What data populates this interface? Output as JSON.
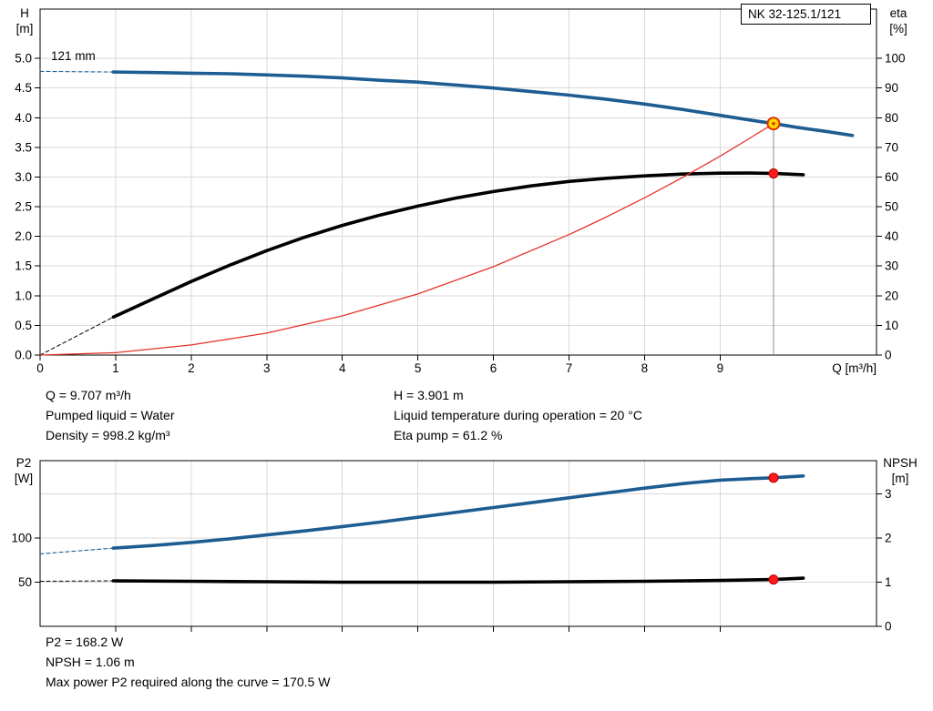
{
  "title_box": "NK 32-125.1/121",
  "impeller": "121 mm",
  "axes": {
    "h": "H",
    "h_unit": "[m]",
    "eta": "eta",
    "eta_unit": "[%]",
    "q": "Q [m³/h]",
    "p2": "P2",
    "p2_unit": "[W]",
    "npsh": "NPSH",
    "npsh_unit": "[m]"
  },
  "info_top": {
    "left": [
      "Q = 9.707 m³/h",
      "Pumped liquid = Water",
      "Density = 998.2 kg/m³"
    ],
    "right": [
      "H = 3.901 m",
      "Liquid temperature during operation = 20 °C",
      "Eta pump = 61.2 %"
    ]
  },
  "info_bottom": [
    "P2 = 168.2 W",
    "NPSH = 1.06 m",
    "Max power P2 required along the curve = 170.5 W"
  ],
  "colors": {
    "curve_blue": "#1d5d92",
    "curve_black": "#000000",
    "curve_red": "#e63329",
    "dot_red": "#ff1a1a",
    "dot_red_edge": "#b00000",
    "duty_yellow": "#ffd800",
    "duty_ring": "#e03000",
    "grid": "#d9d9d9",
    "axis": "#000000",
    "duty_line": "#8c8c8c"
  },
  "chart_data": [
    {
      "name": "qh-eta-chart",
      "type": "line",
      "x_axis": {
        "label": "Q [m³/h]",
        "min": 0,
        "max": 11.07,
        "ticks": [
          {
            "v": 0,
            "label": "0"
          },
          {
            "v": 1,
            "label": "1"
          },
          {
            "v": 2,
            "label": "2"
          },
          {
            "v": 3,
            "label": "3"
          },
          {
            "v": 4,
            "label": "4"
          },
          {
            "v": 5,
            "label": "5"
          },
          {
            "v": 6,
            "label": "6"
          },
          {
            "v": 7,
            "label": "7"
          },
          {
            "v": 8,
            "label": "8"
          },
          {
            "v": 9,
            "label": "9"
          }
        ]
      },
      "left_axis": {
        "label": "H [m]",
        "min": 0,
        "max": 5.83,
        "ticks": [
          {
            "v": 0,
            "label": "0.0"
          },
          {
            "v": 0.5,
            "label": "0.5"
          },
          {
            "v": 1,
            "label": "1.0"
          },
          {
            "v": 1.5,
            "label": "1.5"
          },
          {
            "v": 2,
            "label": "2.0"
          },
          {
            "v": 2.5,
            "label": "2.5"
          },
          {
            "v": 3,
            "label": "3.0"
          },
          {
            "v": 3.5,
            "label": "3.5"
          },
          {
            "v": 4,
            "label": "4.0"
          },
          {
            "v": 4.5,
            "label": "4.5"
          },
          {
            "v": 5,
            "label": "5.0"
          }
        ]
      },
      "right_axis": {
        "label": "eta [%]",
        "min": 0,
        "max": 116.6,
        "ticks": [
          {
            "v": 0,
            "label": "0"
          },
          {
            "v": 10,
            "label": "10"
          },
          {
            "v": 20,
            "label": "20"
          },
          {
            "v": 30,
            "label": "30"
          },
          {
            "v": 40,
            "label": "40"
          },
          {
            "v": 50,
            "label": "50"
          },
          {
            "v": 60,
            "label": "60"
          },
          {
            "v": 70,
            "label": "70"
          },
          {
            "v": 80,
            "label": "80"
          },
          {
            "v": 90,
            "label": "90"
          },
          {
            "v": 100,
            "label": "100"
          }
        ]
      },
      "series": [
        {
          "name": "head-curve-extension",
          "axis": "left",
          "color": "curve_blue",
          "width": 1.1,
          "dash": "4 3",
          "points": [
            [
              0,
              4.78
            ],
            [
              0.97,
              4.77
            ]
          ]
        },
        {
          "name": "head-curve",
          "axis": "left",
          "color": "curve_blue",
          "width": 3.6,
          "points": [
            [
              0.97,
              4.77
            ],
            [
              1.5,
              4.76
            ],
            [
              2,
              4.75
            ],
            [
              2.5,
              4.74
            ],
            [
              3,
              4.72
            ],
            [
              3.5,
              4.7
            ],
            [
              4,
              4.67
            ],
            [
              4.5,
              4.63
            ],
            [
              5,
              4.6
            ],
            [
              5.5,
              4.55
            ],
            [
              6,
              4.5
            ],
            [
              6.5,
              4.44
            ],
            [
              7,
              4.38
            ],
            [
              7.5,
              4.31
            ],
            [
              8,
              4.23
            ],
            [
              8.5,
              4.14
            ],
            [
              9,
              4.04
            ],
            [
              9.5,
              3.94
            ],
            [
              9.707,
              3.901
            ],
            [
              10,
              3.84
            ],
            [
              10.4,
              3.77
            ],
            [
              10.75,
              3.7
            ]
          ]
        },
        {
          "name": "eta-curve-extension",
          "axis": "right",
          "color": "curve_black",
          "width": 1,
          "dash": "4 3",
          "points": [
            [
              0,
              0
            ],
            [
              0.97,
              12.8
            ]
          ]
        },
        {
          "name": "eta-curve",
          "axis": "right",
          "color": "curve_black",
          "width": 3.6,
          "points": [
            [
              0.97,
              12.8
            ],
            [
              1.5,
              19
            ],
            [
              2,
              24.8
            ],
            [
              2.5,
              30.2
            ],
            [
              3,
              35.2
            ],
            [
              3.5,
              39.7
            ],
            [
              4,
              43.7
            ],
            [
              4.5,
              47.2
            ],
            [
              5,
              50.2
            ],
            [
              5.5,
              52.9
            ],
            [
              6,
              55.1
            ],
            [
              6.5,
              57
            ],
            [
              7,
              58.5
            ],
            [
              7.5,
              59.6
            ],
            [
              8,
              60.4
            ],
            [
              8.5,
              61
            ],
            [
              9,
              61.3
            ],
            [
              9.4,
              61.35
            ],
            [
              9.707,
              61.2
            ],
            [
              10.1,
              60.8
            ]
          ]
        },
        {
          "name": "system-curve",
          "axis": "left",
          "color": "curve_red",
          "width": 1.3,
          "points": [
            [
              0,
              0
            ],
            [
              1,
              0.04
            ],
            [
              2,
              0.17
            ],
            [
              3,
              0.37
            ],
            [
              4,
              0.66
            ],
            [
              5,
              1.03
            ],
            [
              6,
              1.49
            ],
            [
              7,
              2.03
            ],
            [
              7.5,
              2.33
            ],
            [
              8,
              2.65
            ],
            [
              8.5,
              2.99
            ],
            [
              9,
              3.35
            ],
            [
              9.35,
              3.62
            ],
            [
              9.707,
              3.901
            ]
          ]
        }
      ],
      "vlines": [
        {
          "q": 9.707,
          "axis": "left",
          "v1": 3.901,
          "v2": 0,
          "color": "duty_line"
        }
      ],
      "markers": [
        {
          "name": "eta-point-marker",
          "q": 9.707,
          "v": 61.2,
          "axis": "right",
          "r": 5,
          "fill": "dot_red",
          "stroke": "dot_red_edge",
          "sw": 1
        },
        {
          "name": "duty-point-marker",
          "q": 9.707,
          "v": 3.901,
          "axis": "left",
          "r": 6.5,
          "fill": "duty_yellow",
          "stroke": "duty_ring",
          "sw": 2
        },
        {
          "name": "duty-point-center",
          "q": 9.707,
          "v": 3.901,
          "axis": "left",
          "r": 1.6,
          "fill": "duty_ring",
          "stroke": "duty_ring",
          "sw": 0.5
        }
      ]
    },
    {
      "name": "p2-npsh-chart",
      "type": "line",
      "x_axis": {
        "label": "",
        "min": 0,
        "max": 11.07,
        "ticks": [
          {
            "v": 1,
            "label": ""
          },
          {
            "v": 2,
            "label": ""
          },
          {
            "v": 3,
            "label": ""
          },
          {
            "v": 4,
            "label": ""
          },
          {
            "v": 5,
            "label": ""
          },
          {
            "v": 6,
            "label": ""
          },
          {
            "v": 7,
            "label": ""
          },
          {
            "v": 8,
            "label": ""
          },
          {
            "v": 9,
            "label": ""
          }
        ]
      },
      "left_axis": {
        "label": "P2 [W]",
        "min": 0,
        "max": 187.6,
        "ticks": [
          {
            "v": 50,
            "label": "50"
          },
          {
            "v": 100,
            "label": "100"
          }
        ]
      },
      "right_axis": {
        "label": "NPSH [m]",
        "min": 0,
        "max": 3.752,
        "ticks": [
          {
            "v": 0,
            "label": "0"
          },
          {
            "v": 1,
            "label": "1"
          },
          {
            "v": 2,
            "label": "2"
          },
          {
            "v": 3,
            "label": "3"
          }
        ]
      },
      "series": [
        {
          "name": "p2-curve-extension",
          "axis": "left",
          "color": "curve_blue",
          "width": 1.1,
          "dash": "4 3",
          "points": [
            [
              0,
              82
            ],
            [
              0.97,
              88.5
            ]
          ]
        },
        {
          "name": "p2-curve",
          "axis": "left",
          "color": "curve_blue",
          "width": 3.6,
          "points": [
            [
              0.97,
              88.5
            ],
            [
              1.5,
              91.5
            ],
            [
              2,
              95
            ],
            [
              2.5,
              99
            ],
            [
              3,
              103.5
            ],
            [
              3.5,
              108
            ],
            [
              4,
              113
            ],
            [
              4.5,
              118
            ],
            [
              5,
              123.5
            ],
            [
              5.5,
              129
            ],
            [
              6,
              134.5
            ],
            [
              6.5,
              140
            ],
            [
              7,
              145.5
            ],
            [
              7.5,
              151
            ],
            [
              8,
              156.5
            ],
            [
              8.5,
              161.5
            ],
            [
              9,
              165.5
            ],
            [
              9.4,
              167.2
            ],
            [
              9.707,
              168.2
            ],
            [
              10.1,
              170.3
            ]
          ]
        },
        {
          "name": "npsh-curve-extension",
          "axis": "right",
          "color": "curve_black",
          "width": 1,
          "dash": "4 3",
          "points": [
            [
              0,
              1.02
            ],
            [
              0.97,
              1.03
            ]
          ]
        },
        {
          "name": "npsh-curve",
          "axis": "right",
          "color": "curve_black",
          "width": 3.6,
          "points": [
            [
              0.97,
              1.03
            ],
            [
              2,
              1.02
            ],
            [
              3,
              1.01
            ],
            [
              4,
              1
            ],
            [
              5,
              1
            ],
            [
              6,
              1
            ],
            [
              7,
              1.01
            ],
            [
              8,
              1.02
            ],
            [
              9,
              1.04
            ],
            [
              9.707,
              1.06
            ],
            [
              10.1,
              1.09
            ]
          ]
        }
      ],
      "vlines": [],
      "markers": [
        {
          "name": "p2-point-marker",
          "q": 9.707,
          "v": 168.2,
          "axis": "left",
          "r": 5,
          "fill": "dot_red",
          "stroke": "dot_red_edge",
          "sw": 1
        },
        {
          "name": "npsh-point-marker",
          "q": 9.707,
          "v": 1.06,
          "axis": "right",
          "r": 5,
          "fill": "dot_red",
          "stroke": "dot_red_edge",
          "sw": 1
        }
      ]
    }
  ]
}
